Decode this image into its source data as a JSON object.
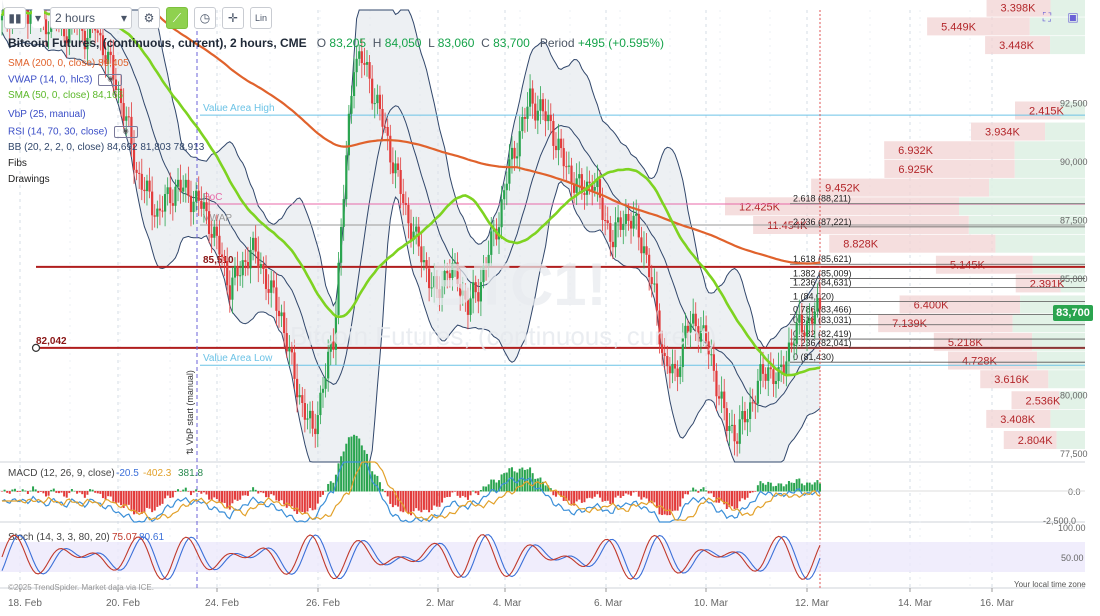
{
  "toolbar": {
    "interval": "2 hours",
    "scale_label": "Lin",
    "icons": [
      "bars-icon",
      "dropdown-caret-icon",
      "settings-gear-icon",
      "indicator-chart-icon",
      "clock-icon",
      "crosshair-icon",
      "scale-icon",
      "fullscreen-icon",
      "camera-icon"
    ]
  },
  "header": {
    "symbol_name": "Bitcoin Futures, (continuous, current), 2 hours, CME",
    "open_label": "O",
    "open": "83,205",
    "high_label": "H",
    "high": "84,050",
    "low_label": "L",
    "low": "83,060",
    "close_label": "C",
    "close": "83,700",
    "period_label": "Period",
    "period_change": "+495 (+0.595%)"
  },
  "watermark": {
    "symbol": "BTC1!",
    "name": "Bitcoin Futures, (continuous, current)"
  },
  "legend": [
    {
      "name": "SMA (200, 0, close)",
      "value": "89,405",
      "color": "#e0622c"
    },
    {
      "name": "VWAP (14, 0, hlc3)",
      "value": "",
      "color": "#3b4ec7"
    },
    {
      "name": "SMA (50, 0, close)",
      "value": "84,166",
      "color": "#5cb82a"
    },
    {
      "name": "VbP (25, manual)",
      "value": "",
      "color": "#3b4ec7"
    },
    {
      "name": "RSI (14, 70, 30, close)",
      "value": "",
      "color": "#3b4ec7"
    },
    {
      "name": "BB (20, 2, 2, 0, close)",
      "value": "84,692 81,803 78,913",
      "color": "#31476b"
    },
    {
      "name": "Fibs",
      "value": "",
      "color": "#222222"
    },
    {
      "name": "Drawings",
      "value": "",
      "color": "#222222"
    }
  ],
  "colors": {
    "up": "#2aa44f",
    "down": "#e23b3b",
    "sma200": "#e0622c",
    "sma50": "#7ed321",
    "bb": "#31476b",
    "vbp_ring": "#f2d3d3",
    "vbp_ring_dark": "#eec6c6",
    "vbp_green": "#dff1e4"
  },
  "chart_data": {
    "type": "candlestick",
    "x_ticks": [
      "18. Feb",
      "20. Feb",
      "24. Feb",
      "26. Feb",
      "2. Mar",
      "4. Mar",
      "6. Mar",
      "10. Mar",
      "12. Mar",
      "14. Mar",
      "16. Mar"
    ],
    "y_ticks": [
      "92,500",
      "90,000",
      "87,500",
      "85,000",
      "80,000",
      "77,500"
    ],
    "ylim": [
      76500,
      97000
    ],
    "last_price": "83,700",
    "candles_close_path": [
      [
        0,
        96000
      ],
      [
        4,
        96600
      ],
      [
        8,
        96200
      ],
      [
        12,
        96900
      ],
      [
        16,
        95800
      ],
      [
        20,
        96400
      ],
      [
        24,
        95600
      ],
      [
        28,
        96100
      ],
      [
        32,
        95400
      ],
      [
        36,
        95900
      ],
      [
        40,
        94600
      ],
      [
        44,
        93400
      ],
      [
        48,
        91800
      ],
      [
        52,
        89600
      ],
      [
        56,
        88600
      ],
      [
        60,
        87800
      ],
      [
        64,
        88400
      ],
      [
        68,
        89000
      ],
      [
        72,
        88600
      ],
      [
        76,
        88300
      ],
      [
        80,
        87500
      ],
      [
        84,
        86200
      ],
      [
        88,
        84700
      ],
      [
        92,
        85300
      ],
      [
        96,
        86300
      ],
      [
        100,
        85600
      ],
      [
        104,
        84400
      ],
      [
        108,
        83400
      ],
      [
        112,
        81200
      ],
      [
        116,
        79600
      ],
      [
        120,
        78400
      ],
      [
        124,
        80400
      ],
      [
        128,
        82400
      ],
      [
        132,
        88600
      ],
      [
        136,
        94500
      ],
      [
        140,
        94200
      ],
      [
        144,
        92800
      ],
      [
        148,
        91300
      ],
      [
        152,
        89600
      ],
      [
        156,
        87900
      ],
      [
        160,
        86600
      ],
      [
        164,
        85400
      ],
      [
        168,
        84200
      ],
      [
        172,
        85500
      ],
      [
        176,
        85000
      ],
      [
        180,
        83800
      ],
      [
        184,
        84600
      ],
      [
        188,
        86100
      ],
      [
        192,
        87600
      ],
      [
        196,
        89800
      ],
      [
        200,
        91200
      ],
      [
        204,
        92700
      ],
      [
        208,
        92200
      ],
      [
        212,
        91600
      ],
      [
        216,
        90200
      ],
      [
        220,
        89400
      ],
      [
        224,
        88700
      ],
      [
        228,
        89300
      ],
      [
        232,
        87900
      ],
      [
        236,
        86600
      ],
      [
        240,
        87700
      ],
      [
        244,
        87400
      ],
      [
        248,
        86400
      ],
      [
        252,
        84200
      ],
      [
        256,
        81400
      ],
      [
        260,
        80800
      ],
      [
        264,
        82700
      ],
      [
        268,
        83200
      ],
      [
        272,
        82300
      ],
      [
        276,
        80600
      ],
      [
        280,
        78700
      ],
      [
        284,
        78400
      ],
      [
        288,
        79200
      ],
      [
        292,
        80500
      ],
      [
        296,
        81200
      ],
      [
        300,
        80600
      ],
      [
        304,
        82100
      ],
      [
        308,
        82900
      ],
      [
        312,
        83200
      ],
      [
        316,
        83700
      ]
    ],
    "candle_count": 317,
    "volume_by_price": [
      {
        "label": "3.398K",
        "price": 96600
      },
      {
        "label": "5.449K",
        "price": 95800
      },
      {
        "label": "3.448K",
        "price": 95000
      },
      {
        "label": "2.415K",
        "price": 92200
      },
      {
        "label": "3.934K",
        "price": 91300
      },
      {
        "label": "6.932K",
        "price": 90500
      },
      {
        "label": "6.925K",
        "price": 89700
      },
      {
        "label": "9.452K",
        "price": 88900
      },
      {
        "label": "12.425K",
        "price": 88100
      },
      {
        "label": "11.454K",
        "price": 87300
      },
      {
        "label": "8.828K",
        "price": 86500
      },
      {
        "label": "5.145K",
        "price": 85600
      },
      {
        "label": "2.391K",
        "price": 84800
      },
      {
        "label": "6.400K",
        "price": 83900
      },
      {
        "label": "7.139K",
        "price": 83100
      },
      {
        "label": "5.218K",
        "price": 82300
      },
      {
        "label": "4.728K",
        "price": 81500
      },
      {
        "label": "3.616K",
        "price": 80700
      },
      {
        "label": "2.536K",
        "price": 79800
      },
      {
        "label": "3.408K",
        "price": 79000
      },
      {
        "label": "2.804K",
        "price": 78100
      }
    ],
    "horizontal_levels": [
      {
        "label": "Value Area High",
        "price": 92000,
        "color": "#6cc3e6"
      },
      {
        "label": "PoC",
        "price": 88200,
        "color": "#e86aa8"
      },
      {
        "label": "VWAP",
        "price": 87300,
        "color": "#9a9a9a"
      },
      {
        "label": "85,510",
        "price": 85510,
        "color": "#b01e1e"
      },
      {
        "label": "82,042",
        "price": 82042,
        "color": "#b01e1e"
      },
      {
        "label": "Value Area Low",
        "price": 81300,
        "color": "#6cc3e6"
      }
    ],
    "fibs": [
      {
        "label": "2.618 (88,211)",
        "price": 88211
      },
      {
        "label": "2.236 (87,221)",
        "price": 87221
      },
      {
        "label": "1.618 (85,621)",
        "price": 85621
      },
      {
        "label": "1.382 (85,009)",
        "price": 85009
      },
      {
        "label": "1.236 (84,631)",
        "price": 84631
      },
      {
        "label": "1 (84,020)",
        "price": 84020
      },
      {
        "label": "0.786 (83,466)",
        "price": 83466
      },
      {
        "label": "0.618 (83,031)",
        "price": 83031
      },
      {
        "label": "0.382 (82,419)",
        "price": 82419
      },
      {
        "label": "0.236 (82,041)",
        "price": 82041
      },
      {
        "label": "0 (81,430)",
        "price": 81430
      }
    ],
    "vbp_start_label": "VbP start (manual)",
    "macd": {
      "label": "MACD (12, 26, 9, close)",
      "values": [
        "-20.5",
        "-402.3",
        "381.8"
      ],
      "y_ticks": [
        "0.0",
        "-2,500.0"
      ]
    },
    "stoch": {
      "label": "Stoch (14, 3, 3, 80, 20)",
      "values": [
        "75.07",
        "80.61"
      ],
      "y_ticks": [
        "100.00",
        "50.00"
      ]
    }
  },
  "footer": {
    "copyright": "©2025 TrendSpider. Market data via ICE.",
    "timezone_note": "Your local time zone"
  }
}
